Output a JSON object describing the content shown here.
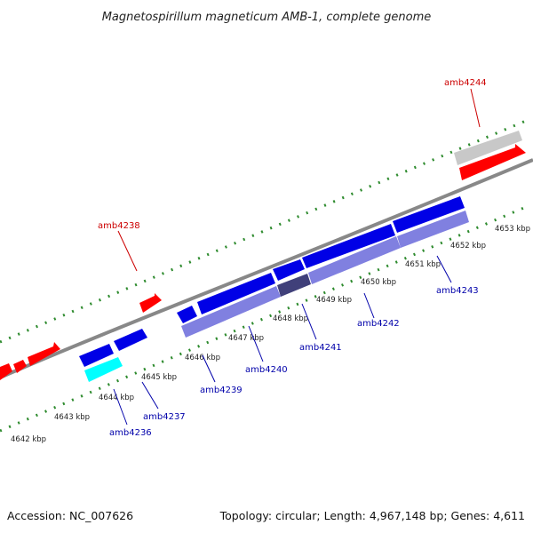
{
  "title": "Magnetospirillum magneticum AMB-1, complete genome",
  "accession": "Accession: NC_007626",
  "topology": "Topology: circular; Length: 4,967,148 bp; Genes: 4,611",
  "colors": {
    "forward_gene": "#ff0000",
    "reverse_gene": "#0000e6",
    "feature_overlay": "#8080e0",
    "highlight_gene": "#00ffff",
    "grey_gene": "#c8c8c8",
    "backbone": "#888888",
    "ticks": "#2e8b2e",
    "label_red": "#cc0000",
    "label_blue": "#0000aa"
  },
  "ticks": [
    "4642 kbp",
    "4643 kbp",
    "4644 kbp",
    "4645 kbp",
    "4646 kbp",
    "4647 kbp",
    "4648 kbp",
    "4649 kbp",
    "4650 kbp",
    "4651 kbp",
    "4652 kbp",
    "4653 kbp"
  ],
  "gene_labels": {
    "amb4244": "amb4244",
    "amb4238": "amb4238",
    "amb4236": "amb4236",
    "amb4237": "amb4237",
    "amb4239": "amb4239",
    "amb4240": "amb4240",
    "amb4241": "amb4241",
    "amb4242": "amb4242",
    "amb4243": "amb4243"
  }
}
